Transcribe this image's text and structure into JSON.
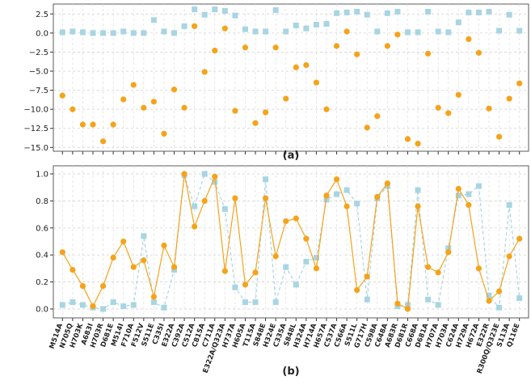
{
  "chart_data": [
    {
      "type": "scatter",
      "title": "(a)",
      "categories": [
        "M514A",
        "N705Q",
        "H703K",
        "A683I",
        "H703R",
        "D681E",
        "M514I",
        "F710A",
        "F512V",
        "S511E",
        "C335I",
        "E322A",
        "C392A",
        "C512A",
        "C815A",
        "C711A",
        "E322A/Q323A",
        "H737A",
        "H605A",
        "T115A",
        "S848E",
        "H324E",
        "C335A",
        "S848L",
        "H324A",
        "H714A",
        "H657A",
        "C537A",
        "C566A",
        "S511L",
        "G717H",
        "C598A",
        "C648A",
        "A683R",
        "D681R",
        "C668A",
        "D681A",
        "H707A",
        "H703A",
        "C624A",
        "H729A",
        "H672A",
        "E322R",
        "R300Q/Q323E",
        "S113A",
        "Q116E"
      ],
      "series": [
        {
          "color": "#a8d5e2",
          "marker": "square",
          "values": [
            0.1,
            0.2,
            0.1,
            0.0,
            0.0,
            0.0,
            0.2,
            0.0,
            0.0,
            1.7,
            0.2,
            0.0,
            0.9,
            3.1,
            2.4,
            3.1,
            2.9,
            2.3,
            0.5,
            0.2,
            0.2,
            3.0,
            0.2,
            1.0,
            0.6,
            1.1,
            1.2,
            2.6,
            2.7,
            2.8,
            2.4,
            0.2,
            2.6,
            2.8,
            0.1,
            0.1,
            2.8,
            0.2,
            0.1,
            1.4,
            2.7,
            2.7,
            2.8,
            0.3,
            2.4,
            0.3
          ]
        },
        {
          "color": "#f5a31a",
          "marker": "circle",
          "values": [
            -8.2,
            -10.0,
            -12.0,
            -12.0,
            -14.2,
            -12.0,
            -8.7,
            -6.8,
            -9.8,
            -9.0,
            -13.2,
            -7.4,
            -9.8,
            0.9,
            -5.1,
            -2.3,
            0.6,
            -10.2,
            -1.9,
            -11.8,
            -10.4,
            -1.9,
            -8.6,
            -4.5,
            -4.2,
            -6.5,
            -10.0,
            -1.7,
            0.2,
            -2.8,
            -12.4,
            -10.9,
            -1.7,
            -0.2,
            -13.9,
            -14.5,
            -2.7,
            -9.8,
            -10.5,
            -8.1,
            -0.8,
            -2.6,
            -9.9,
            -13.6,
            -8.6,
            -6.6
          ]
        }
      ],
      "ylim": [
        -15.5,
        3.8
      ],
      "yticks": [
        2.5,
        {
          "value": 0,
          "label": "0.0"
        },
        {
          "value": -2.5,
          "label": "−2.5"
        },
        {
          "value": -5,
          "label": "−5.0"
        },
        {
          "value": -7.5,
          "label": "−7.5"
        },
        {
          "value": -10,
          "label": "−10.0"
        },
        {
          "value": -12.5,
          "label": "−12.5"
        },
        {
          "value": -15,
          "label": "−15.0"
        }
      ],
      "grid": true
    },
    {
      "type": "line",
      "title": "(b)",
      "categories": [
        "M514A",
        "N705Q",
        "H703K",
        "A683I",
        "H703R",
        "D681E",
        "M514I",
        "F710A",
        "F512V",
        "S511E",
        "C335I",
        "E322A",
        "C392A",
        "C512A",
        "C815A",
        "C711A",
        "E322A/Q323A",
        "H737A",
        "H605A",
        "T115A",
        "S848E",
        "H324E",
        "C335A",
        "S848L",
        "H324A",
        "H714A",
        "H657A",
        "C537A",
        "C566A",
        "S511L",
        "G717H",
        "C598A",
        "C648A",
        "A683R",
        "D681R",
        "C668A",
        "D681A",
        "H707A",
        "H703A",
        "C624A",
        "H729A",
        "H672A",
        "E322R",
        "R300Q/Q323E",
        "S113A",
        "Q116E"
      ],
      "series": [
        {
          "color": "#a8d5e2",
          "marker": "square",
          "dashed": true,
          "values": [
            0.03,
            0.05,
            0.03,
            0.01,
            0.0,
            0.05,
            0.02,
            0.03,
            0.54,
            0.05,
            0.01,
            0.29,
            0.99,
            0.76,
            1.0,
            0.94,
            0.74,
            0.16,
            0.05,
            0.05,
            0.96,
            0.05,
            0.31,
            0.18,
            0.35,
            0.38,
            0.81,
            0.85,
            0.88,
            0.78,
            0.07,
            0.82,
            0.91,
            0.02,
            0.03,
            0.88,
            0.07,
            0.03,
            0.45,
            0.84,
            0.85,
            0.91,
            0.1,
            0.01,
            0.77,
            0.08
          ]
        },
        {
          "color": "#f5a31a",
          "marker": "circle",
          "dashed": false,
          "values": [
            0.42,
            0.29,
            0.17,
            0.02,
            0.17,
            0.38,
            0.5,
            0.31,
            0.36,
            0.09,
            0.47,
            0.31,
            1.0,
            0.61,
            0.8,
            0.98,
            0.28,
            0.82,
            0.18,
            0.27,
            0.82,
            0.39,
            0.65,
            0.67,
            0.52,
            0.3,
            0.84,
            0.96,
            0.76,
            0.14,
            0.24,
            0.83,
            0.93,
            0.04,
            0.0,
            0.76,
            0.31,
            0.27,
            0.42,
            0.89,
            0.77,
            0.3,
            0.06,
            0.13,
            0.39,
            0.52
          ]
        }
      ],
      "ylim": [
        -0.066,
        1.06
      ],
      "yticks": [
        {
          "value": 0,
          "label": "0.0"
        },
        0.2,
        0.4,
        0.6,
        0.8,
        {
          "value": 1,
          "label": "1.0"
        }
      ],
      "grid": true
    }
  ]
}
